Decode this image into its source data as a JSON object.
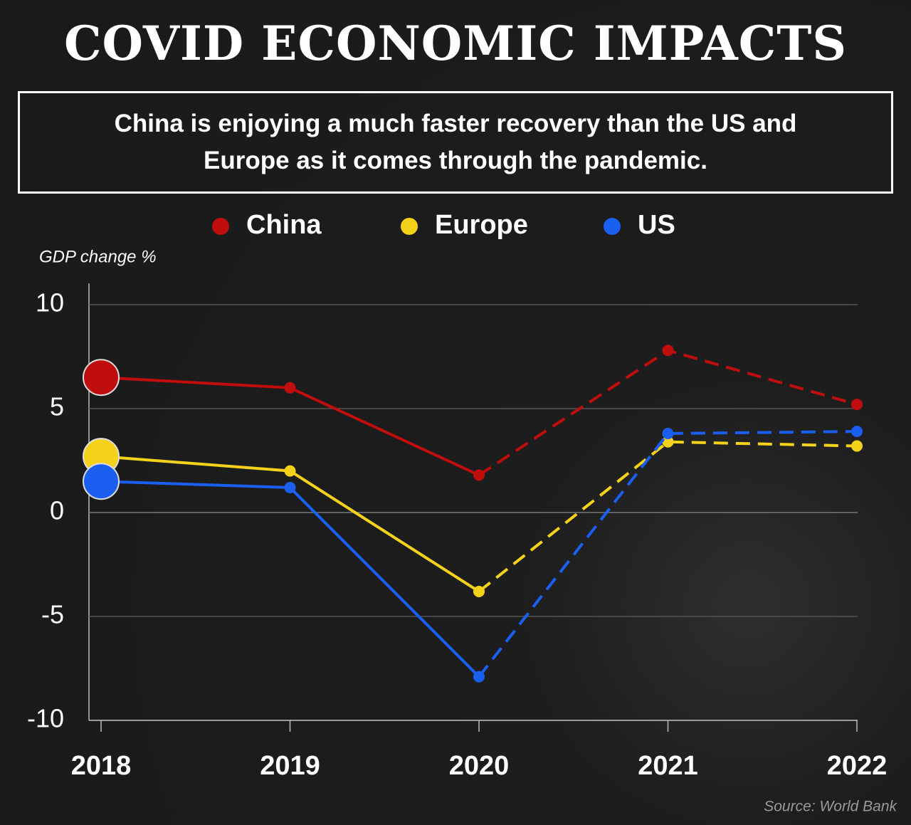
{
  "chart_data": {
    "type": "line",
    "title": "COVID ECONOMIC IMPACTS",
    "subtitle": "China is enjoying a much faster recovery than the US and Europe as it comes through the pandemic.",
    "y_label": "GDP change %",
    "source": "Source: World Bank",
    "categories": [
      "2018",
      "2019",
      "2020",
      "2021",
      "2022"
    ],
    "dashed_from": "2020",
    "series": [
      {
        "name": "China",
        "color": "#c00d0d",
        "values": [
          6.5,
          6.0,
          1.8,
          7.8,
          5.2
        ]
      },
      {
        "name": "Europe",
        "color": "#f5d21a",
        "values": [
          2.7,
          2.0,
          -3.8,
          3.4,
          3.2
        ]
      },
      {
        "name": "US",
        "color": "#1a5ff0",
        "values": [
          1.5,
          1.2,
          -7.9,
          3.8,
          3.9
        ]
      }
    ],
    "ylim": [
      -10,
      10
    ],
    "yticks": [
      -10,
      -5,
      0,
      5,
      10
    ],
    "grid": true
  }
}
